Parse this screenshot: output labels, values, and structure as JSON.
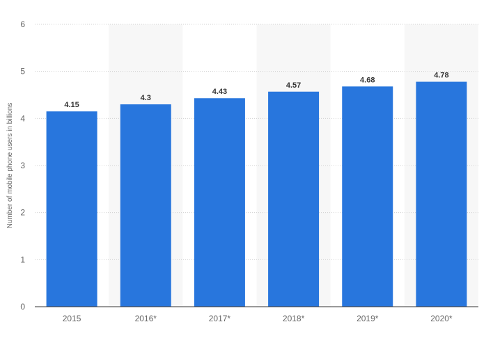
{
  "chart_data": {
    "type": "bar",
    "categories": [
      "2015",
      "2016*",
      "2017*",
      "2018*",
      "2019*",
      "2020*"
    ],
    "values": [
      4.15,
      4.3,
      4.43,
      4.57,
      4.68,
      4.78
    ],
    "value_labels": [
      "4.15",
      "4.3",
      "4.43",
      "4.57",
      "4.68",
      "4.78"
    ],
    "xlabel": "",
    "ylabel": "Number of mobile phone users in billions",
    "ylim": [
      0,
      6
    ],
    "yticks": [
      "0",
      "1",
      "2",
      "3",
      "4",
      "5",
      "6"
    ],
    "grid": true,
    "bar_color": "#2876dd",
    "band_color": "#f7f7f7",
    "grid_color": "#d0d0d0",
    "axis_color": "#333333"
  }
}
